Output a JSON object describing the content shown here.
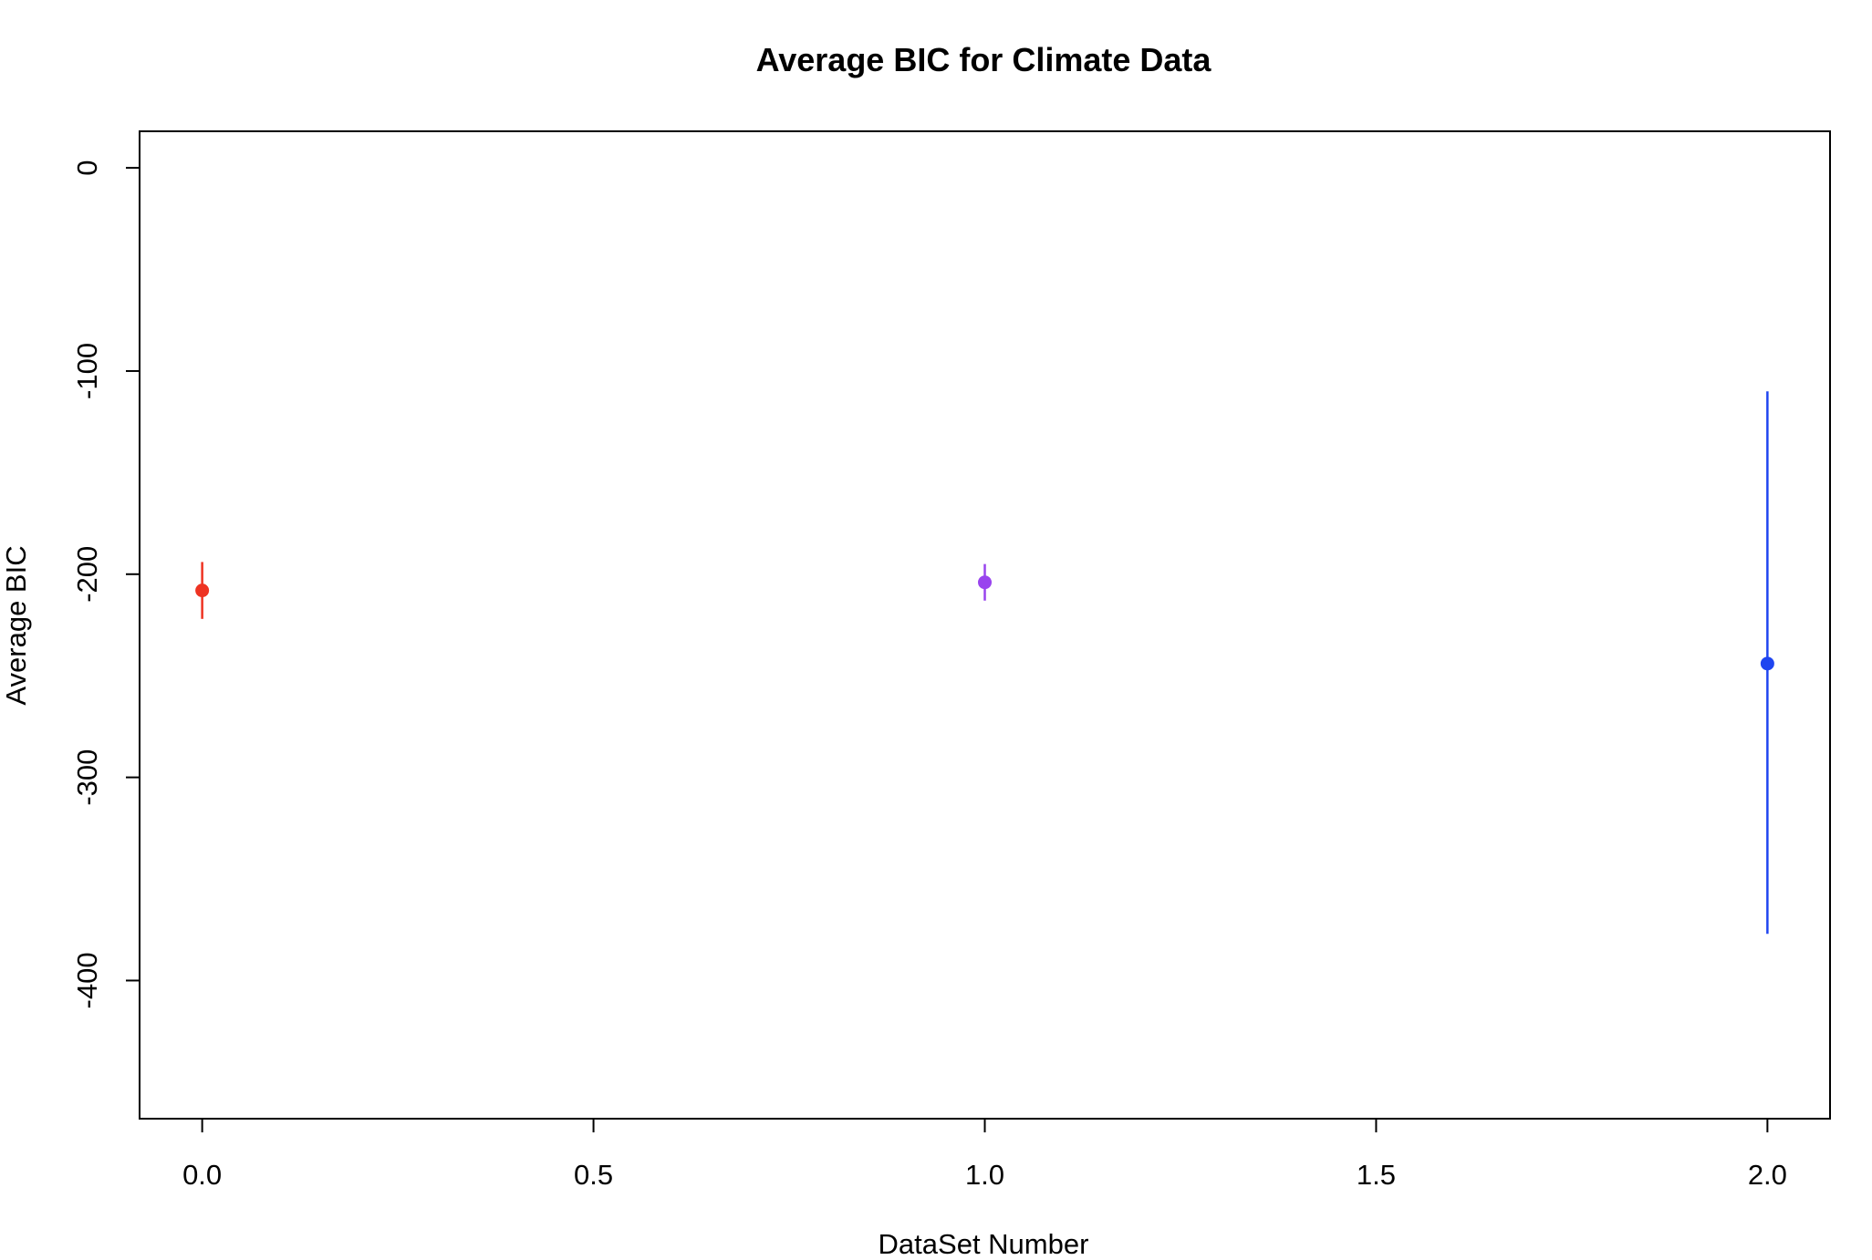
{
  "chart_data": {
    "type": "scatter",
    "title": "Average BIC for Climate Data",
    "xlabel": "DataSet Number",
    "ylabel": "Average BIC",
    "xlim": [
      -0.08,
      2.08
    ],
    "ylim": [
      -468,
      18
    ],
    "x_ticks": [
      {
        "value": 0.0,
        "label": "0.0"
      },
      {
        "value": 0.5,
        "label": "0.5"
      },
      {
        "value": 1.0,
        "label": "1.0"
      },
      {
        "value": 1.5,
        "label": "1.5"
      },
      {
        "value": 2.0,
        "label": "2.0"
      }
    ],
    "y_ticks": [
      {
        "value": 0,
        "label": "0"
      },
      {
        "value": -100,
        "label": "-100"
      },
      {
        "value": -200,
        "label": "-200"
      },
      {
        "value": -300,
        "label": "-300"
      },
      {
        "value": -400,
        "label": "-400"
      }
    ],
    "grid": false,
    "points": [
      {
        "x": 0,
        "y": -208,
        "err_low": -222,
        "err_high": -194,
        "color": "#ee3322"
      },
      {
        "x": 1,
        "y": -204,
        "err_low": -213,
        "err_high": -195,
        "color": "#9944ee"
      },
      {
        "x": 2,
        "y": -244,
        "err_low": -377,
        "err_high": -110,
        "color": "#1f45f0"
      }
    ]
  }
}
